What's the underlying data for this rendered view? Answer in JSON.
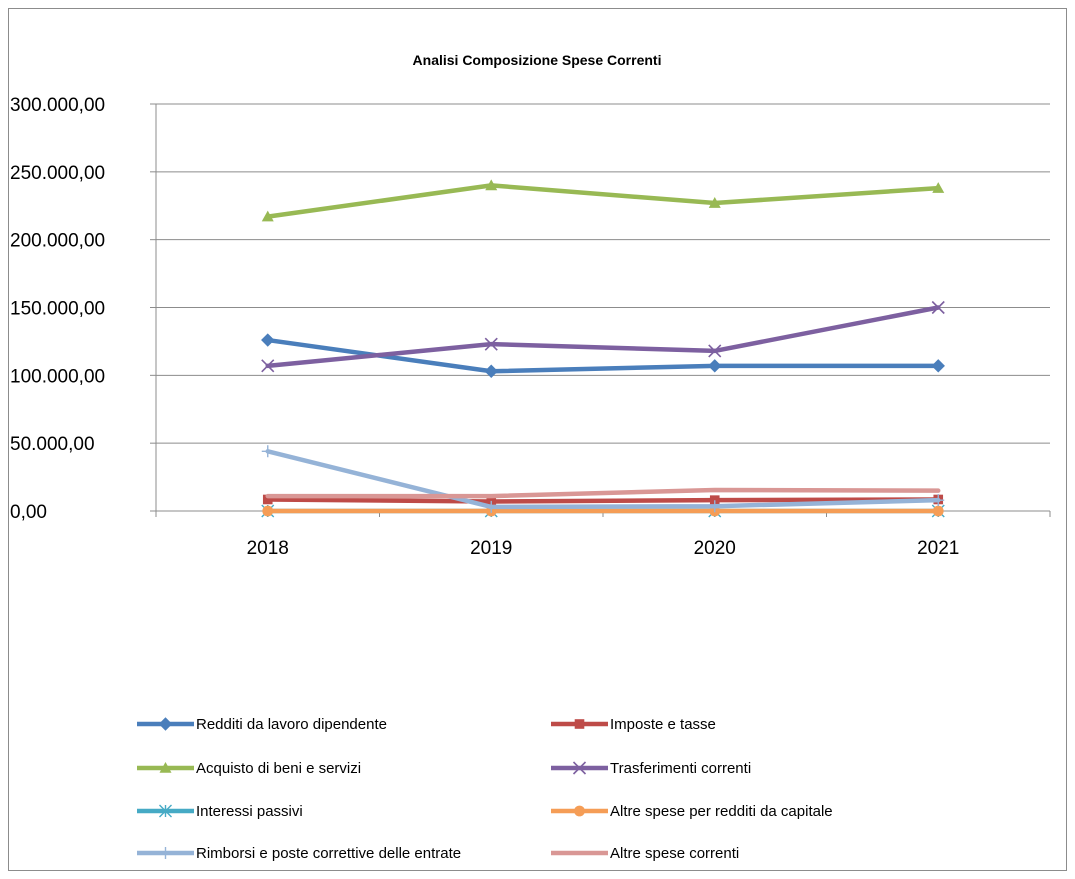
{
  "chart_data": {
    "type": "line",
    "title": "Analisi Composizione Spese Correnti",
    "xlabel": "",
    "ylabel": "",
    "categories": [
      "2018",
      "2019",
      "2020",
      "2021"
    ],
    "y_ticks": [
      "0,00",
      "50.000,00",
      "100.000,00",
      "150.000,00",
      "200.000,00",
      "250.000,00",
      "300.000,00"
    ],
    "ylim": [
      0,
      300000
    ],
    "grid": "horizontal",
    "legend_position": "bottom",
    "series": [
      {
        "name": "Redditi da lavoro dipendente",
        "values": [
          126000,
          103000,
          107000,
          107000
        ],
        "color": "#4a7ebb",
        "marker": "diamond"
      },
      {
        "name": "Imposte e tasse",
        "values": [
          8500,
          7000,
          8000,
          8500
        ],
        "color": "#be4b48",
        "marker": "square"
      },
      {
        "name": "Acquisto di beni e servizi",
        "values": [
          217000,
          240000,
          227000,
          238000
        ],
        "color": "#98b954",
        "marker": "triangle"
      },
      {
        "name": "Trasferimenti correnti",
        "values": [
          107000,
          123000,
          118000,
          150000
        ],
        "color": "#7d60a0",
        "marker": "x"
      },
      {
        "name": "Interessi passivi",
        "values": [
          0,
          0,
          0,
          0
        ],
        "color": "#46aac5",
        "marker": "star"
      },
      {
        "name": "Altre spese per redditi da capitale",
        "values": [
          0,
          0,
          0,
          0
        ],
        "color": "#f59d56",
        "marker": "circle"
      },
      {
        "name": "Rimborsi e poste correttive delle entrate",
        "values": [
          44000,
          3000,
          3500,
          8000
        ],
        "color": "#95b3d7",
        "marker": "plus"
      },
      {
        "name": "Altre spese correnti",
        "values": [
          11000,
          11000,
          15500,
          15000
        ],
        "color": "#d99795",
        "marker": "none"
      }
    ]
  }
}
